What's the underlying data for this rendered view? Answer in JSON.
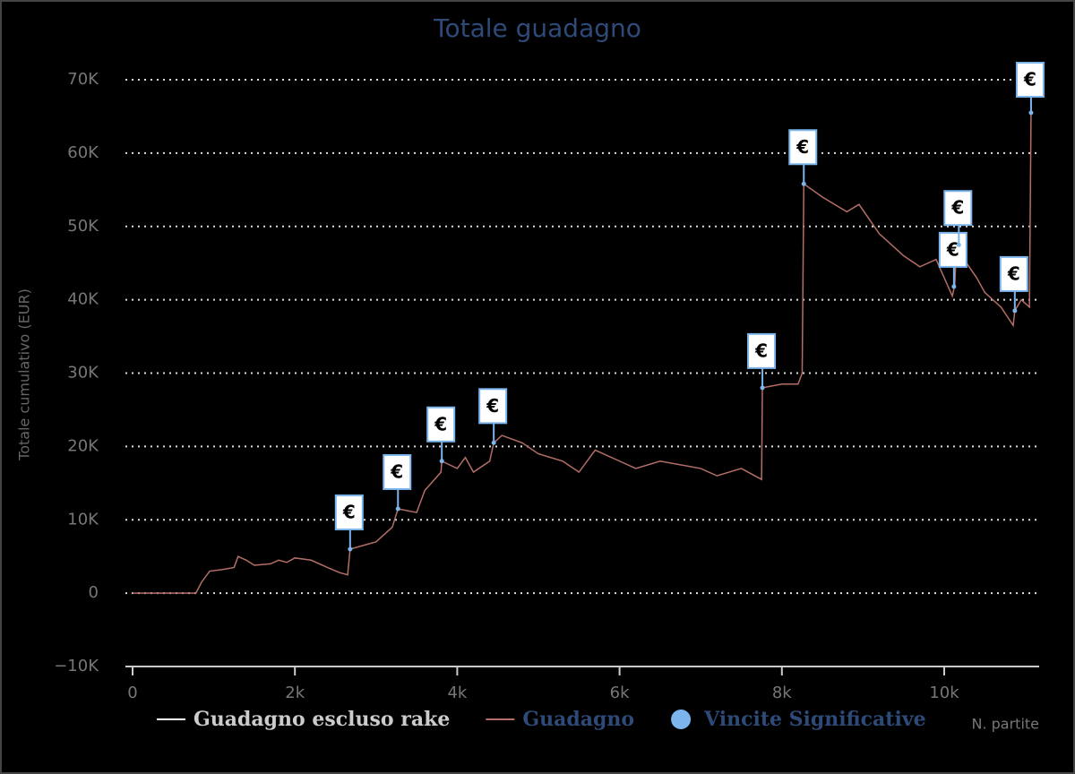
{
  "chart_data": {
    "type": "line",
    "title": "Totale guadagno",
    "y_label": "Totale cumulativo (EUR)",
    "x_label": "N. partite",
    "xlim": [
      0,
      11170
    ],
    "xticks": [
      0,
      {
        "value": 2000,
        "label": "2k"
      },
      {
        "value": 4000,
        "label": "4k"
      },
      {
        "value": 6000,
        "label": "6k"
      },
      {
        "value": 8000,
        "label": "8k"
      },
      {
        "value": 10000,
        "label": "10k"
      }
    ],
    "ylim": [
      -10000,
      70000
    ],
    "yticks": [
      {
        "value": -10000,
        "label": "−10K"
      },
      0,
      {
        "value": 10000,
        "label": "10K"
      },
      {
        "value": 20000,
        "label": "20K"
      },
      {
        "value": 30000,
        "label": "30K"
      },
      {
        "value": 40000,
        "label": "40K"
      },
      {
        "value": 50000,
        "label": "50K"
      },
      {
        "value": 60000,
        "label": "60K"
      },
      {
        "value": 70000,
        "label": "70K"
      }
    ],
    "grid": true,
    "series": [
      {
        "name": "Guadagno escluso rake",
        "color": "#ffffff",
        "visible": false
      },
      {
        "name": "Guadagno",
        "color": "#b46e66",
        "x": [
          0,
          500,
          780,
          850,
          950,
          1100,
          1250,
          1300,
          1400,
          1500,
          1700,
          1800,
          1900,
          2000,
          2200,
          2400,
          2550,
          2650,
          2680,
          3000,
          3200,
          3270,
          3500,
          3600,
          3800,
          3810,
          4000,
          4100,
          4200,
          4400,
          4450,
          4550,
          4800,
          5000,
          5300,
          5500,
          5700,
          6000,
          6200,
          6500,
          7000,
          7200,
          7500,
          7750,
          7760,
          8000,
          8200,
          8250,
          8270,
          8500,
          8800,
          8950,
          9200,
          9500,
          9700,
          9900,
          10100,
          10130,
          10150,
          10400,
          10500,
          10700,
          10850,
          10870,
          10950,
          11050,
          11070
        ],
        "values": [
          0,
          0,
          0,
          1500,
          3000,
          3200,
          3500,
          5000,
          4500,
          3800,
          4000,
          4500,
          4200,
          4800,
          4500,
          3500,
          2800,
          2500,
          6000,
          7000,
          9000,
          11500,
          11000,
          14000,
          16500,
          18000,
          17000,
          18500,
          16500,
          18000,
          20500,
          21500,
          20500,
          19000,
          18000,
          16500,
          19500,
          18000,
          17000,
          18000,
          17000,
          16000,
          17000,
          15500,
          28000,
          28500,
          28500,
          30000,
          55800,
          54000,
          52000,
          53000,
          49000,
          46000,
          44500,
          45500,
          40500,
          42000,
          47000,
          43000,
          41000,
          39000,
          36500,
          38500,
          40000,
          39000,
          65500
        ]
      },
      {
        "name": "Vincite Significative",
        "color": "#7cb5ec",
        "type": "scatter",
        "flag": "€",
        "x": [
          2680,
          3270,
          3810,
          4450,
          7760,
          8270,
          10120,
          10180,
          10870,
          11070
        ],
        "values": [
          6000,
          11500,
          18000,
          20500,
          28000,
          55800,
          41800,
          47500,
          38500,
          65500
        ]
      }
    ]
  }
}
